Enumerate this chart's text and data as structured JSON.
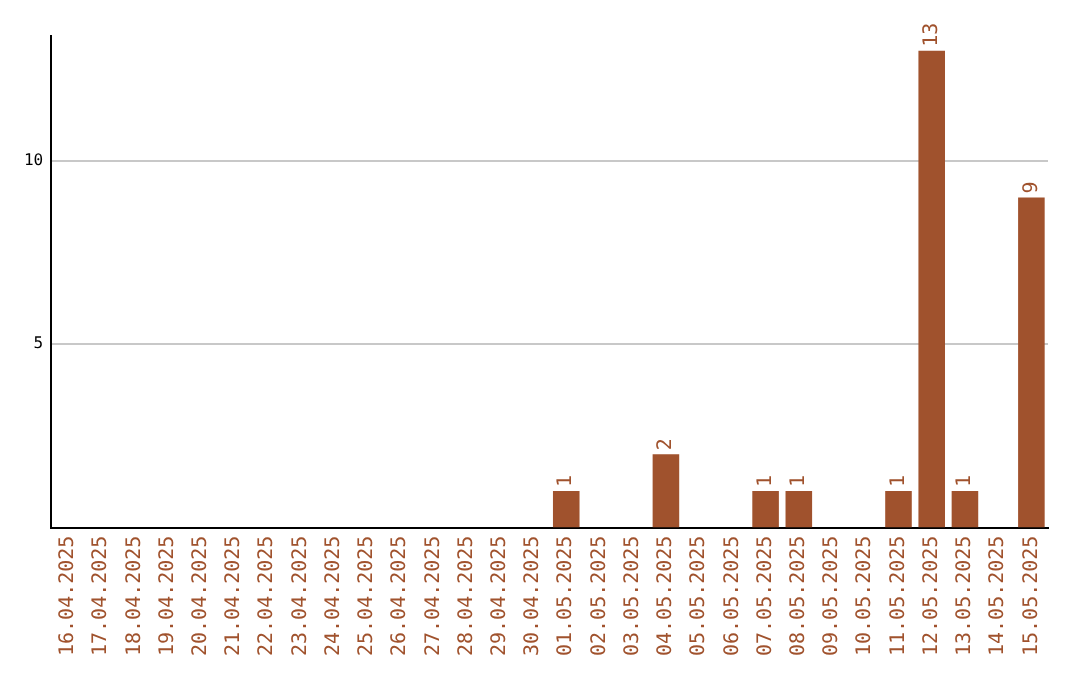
{
  "chart_data": {
    "type": "bar",
    "categories": [
      "16.04.2025",
      "17.04.2025",
      "18.04.2025",
      "19.04.2025",
      "20.04.2025",
      "21.04.2025",
      "22.04.2025",
      "23.04.2025",
      "24.04.2025",
      "25.04.2025",
      "26.04.2025",
      "27.04.2025",
      "28.04.2025",
      "29.04.2025",
      "30.04.2025",
      "01.05.2025",
      "02.05.2025",
      "03.05.2025",
      "04.05.2025",
      "05.05.2025",
      "06.05.2025",
      "07.05.2025",
      "08.05.2025",
      "09.05.2025",
      "10.05.2025",
      "11.05.2025",
      "12.05.2025",
      "13.05.2025",
      "14.05.2025",
      "15.05.2025"
    ],
    "values": [
      0,
      0,
      0,
      0,
      0,
      0,
      0,
      0,
      0,
      0,
      0,
      0,
      0,
      0,
      0,
      1,
      0,
      0,
      2,
      0,
      0,
      1,
      1,
      0,
      0,
      1,
      13,
      1,
      0,
      9
    ],
    "value_labels": [
      null,
      null,
      null,
      null,
      null,
      null,
      null,
      null,
      null,
      null,
      null,
      null,
      null,
      null,
      null,
      "1",
      null,
      null,
      "2",
      null,
      null,
      "1",
      "1",
      null,
      null,
      "1",
      "13",
      "1",
      null,
      "9"
    ],
    "color": "#a0522d",
    "ylim": [
      0,
      13.4
    ],
    "yticks": [
      5,
      10
    ],
    "grid": "y",
    "legend": false
  }
}
